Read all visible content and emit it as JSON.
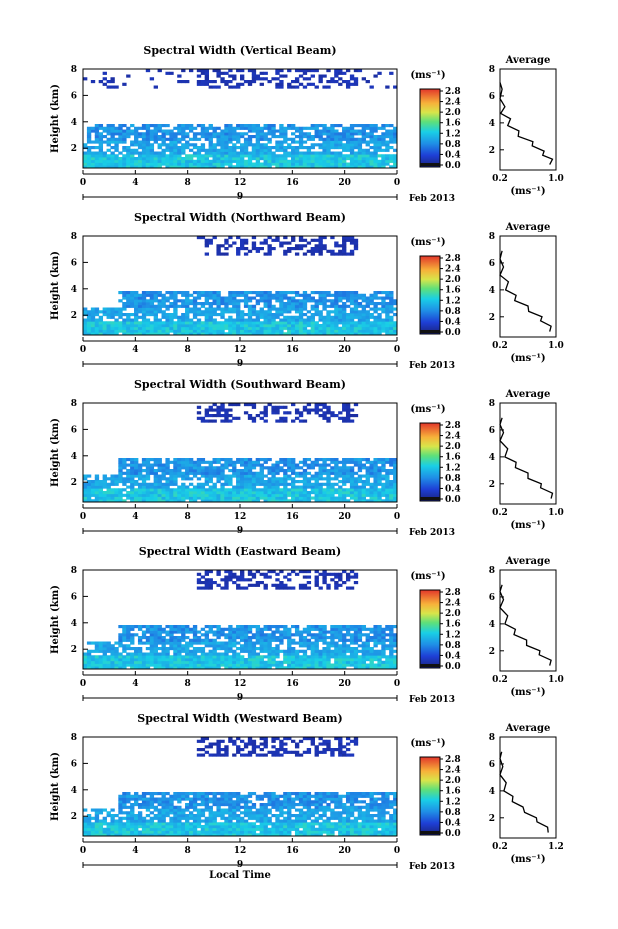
{
  "figure": {
    "xlabel": "Local Time",
    "date_label": "9",
    "month_label": "Feb 2013"
  },
  "chart_data": [
    {
      "type": "heatmap",
      "title": "Spectral Width (Vertical Beam)",
      "ylabel": "Height (km)",
      "x_ticks": [
        "0",
        "4",
        "8",
        "12",
        "16",
        "20",
        "0"
      ],
      "y_ticks": [
        "2",
        "4",
        "6",
        "8"
      ],
      "xlim": [
        0,
        24
      ],
      "ylim": [
        0.5,
        8
      ],
      "colorbar": {
        "label": "(ms⁻¹)",
        "ticks": [
          "0.0",
          "0.4",
          "0.8",
          "1.2",
          "1.6",
          "2.0",
          "2.4",
          "2.8"
        ],
        "range": [
          0,
          2.8
        ]
      },
      "profile": {
        "title": "Average",
        "xlabel": "(ms⁻¹)",
        "x_ticks": [
          "0.2",
          "1.0"
        ],
        "y_ticks": [
          "2",
          "4",
          "6",
          "8"
        ],
        "xlim": [
          0.2,
          1.0
        ],
        "points": [
          [
            0.95,
            0.9
          ],
          [
            0.9,
            1.3
          ],
          [
            0.85,
            1.6
          ],
          [
            0.78,
            1.9
          ],
          [
            0.7,
            2.3
          ],
          [
            0.62,
            2.6
          ],
          [
            0.5,
            3.0
          ],
          [
            0.42,
            3.4
          ],
          [
            0.35,
            3.8
          ],
          [
            0.3,
            4.3
          ],
          [
            0.25,
            4.7
          ],
          [
            0.22,
            5.2
          ],
          [
            0.2,
            5.8
          ],
          [
            0.18,
            6.5
          ],
          [
            0.18,
            7.0
          ]
        ]
      }
    },
    {
      "type": "heatmap",
      "title": "Spectral Width (Northward Beam)",
      "ylabel": "Height (km)",
      "x_ticks": [
        "0",
        "4",
        "8",
        "12",
        "16",
        "20",
        "0"
      ],
      "y_ticks": [
        "2",
        "4",
        "6",
        "8"
      ],
      "xlim": [
        0,
        24
      ],
      "ylim": [
        0.5,
        8
      ],
      "colorbar": {
        "label": "(ms⁻¹)",
        "ticks": [
          "0.0",
          "0.4",
          "0.8",
          "1.2",
          "1.6",
          "2.0",
          "2.4",
          "2.8"
        ],
        "range": [
          0,
          2.8
        ]
      },
      "profile": {
        "title": "Average",
        "xlabel": "(ms⁻¹)",
        "x_ticks": [
          "0.2",
          "1.0"
        ],
        "y_ticks": [
          "2",
          "4",
          "6",
          "8"
        ],
        "xlim": [
          0.2,
          1.0
        ],
        "points": [
          [
            0.95,
            0.9
          ],
          [
            0.88,
            1.3
          ],
          [
            0.82,
            1.7
          ],
          [
            0.75,
            2.0
          ],
          [
            0.65,
            2.4
          ],
          [
            0.55,
            2.8
          ],
          [
            0.45,
            3.2
          ],
          [
            0.38,
            3.6
          ],
          [
            0.32,
            4.0
          ],
          [
            0.27,
            4.6
          ],
          [
            0.23,
            5.1
          ],
          [
            0.2,
            5.7
          ],
          [
            0.19,
            6.3
          ],
          [
            0.18,
            6.9
          ]
        ]
      }
    },
    {
      "type": "heatmap",
      "title": "Spectral Width (Southward Beam)",
      "ylabel": "Height (km)",
      "x_ticks": [
        "0",
        "4",
        "8",
        "12",
        "16",
        "20",
        "0"
      ],
      "y_ticks": [
        "2",
        "4",
        "6",
        "8"
      ],
      "xlim": [
        0,
        24
      ],
      "ylim": [
        0.5,
        8
      ],
      "colorbar": {
        "label": "(ms⁻¹)",
        "ticks": [
          "0.0",
          "0.4",
          "0.8",
          "1.2",
          "1.6",
          "2.0",
          "2.4",
          "2.8"
        ],
        "range": [
          0,
          2.8
        ]
      },
      "profile": {
        "title": "Average",
        "xlabel": "(ms⁻¹)",
        "x_ticks": [
          "0.2",
          "1.0"
        ],
        "y_ticks": [
          "2",
          "4",
          "6",
          "8"
        ],
        "xlim": [
          0.2,
          1.0
        ],
        "points": [
          [
            0.97,
            0.9
          ],
          [
            0.9,
            1.3
          ],
          [
            0.82,
            1.7
          ],
          [
            0.74,
            2.0
          ],
          [
            0.64,
            2.4
          ],
          [
            0.55,
            2.8
          ],
          [
            0.46,
            3.2
          ],
          [
            0.38,
            3.6
          ],
          [
            0.31,
            4.0
          ],
          [
            0.26,
            4.6
          ],
          [
            0.22,
            5.2
          ],
          [
            0.2,
            5.8
          ],
          [
            0.19,
            6.4
          ],
          [
            0.18,
            6.9
          ]
        ]
      }
    },
    {
      "type": "heatmap",
      "title": "Spectral Width (Eastward Beam)",
      "ylabel": "Height (km)",
      "x_ticks": [
        "0",
        "4",
        "8",
        "12",
        "16",
        "20",
        "0"
      ],
      "y_ticks": [
        "2",
        "4",
        "6",
        "8"
      ],
      "xlim": [
        0,
        24
      ],
      "ylim": [
        0.5,
        8
      ],
      "colorbar": {
        "label": "(ms⁻¹)",
        "ticks": [
          "0.0",
          "0.4",
          "0.8",
          "1.2",
          "1.6",
          "2.0",
          "2.4",
          "2.8"
        ],
        "range": [
          0,
          2.8
        ]
      },
      "profile": {
        "title": "Average",
        "xlabel": "(ms⁻¹)",
        "x_ticks": [
          "0.2",
          "1.0"
        ],
        "y_ticks": [
          "2",
          "4",
          "6",
          "8"
        ],
        "xlim": [
          0.2,
          1.0
        ],
        "points": [
          [
            0.95,
            0.9
          ],
          [
            0.88,
            1.3
          ],
          [
            0.8,
            1.7
          ],
          [
            0.72,
            2.0
          ],
          [
            0.62,
            2.4
          ],
          [
            0.53,
            2.8
          ],
          [
            0.44,
            3.2
          ],
          [
            0.37,
            3.6
          ],
          [
            0.31,
            4.0
          ],
          [
            0.26,
            4.6
          ],
          [
            0.22,
            5.2
          ],
          [
            0.2,
            5.8
          ],
          [
            0.19,
            6.4
          ],
          [
            0.18,
            6.9
          ]
        ]
      }
    },
    {
      "type": "heatmap",
      "title": "Spectral Width (Westward Beam)",
      "ylabel": "Height (km)",
      "x_ticks": [
        "0",
        "4",
        "8",
        "12",
        "16",
        "20",
        "0"
      ],
      "y_ticks": [
        "2",
        "4",
        "6",
        "8"
      ],
      "xlim": [
        0,
        24
      ],
      "ylim": [
        0.5,
        8
      ],
      "colorbar": {
        "label": "(ms⁻¹)",
        "ticks": [
          "0.0",
          "0.4",
          "0.8",
          "1.2",
          "1.6",
          "2.0",
          "2.4",
          "2.8"
        ],
        "range": [
          0,
          2.8
        ]
      },
      "profile": {
        "title": "Average",
        "xlabel": "(ms⁻¹)",
        "x_ticks": [
          "0.2",
          "1.2"
        ],
        "y_ticks": [
          "2",
          "4",
          "6",
          "8"
        ],
        "xlim": [
          0.2,
          1.2
        ],
        "points": [
          [
            1.1,
            0.9
          ],
          [
            1.0,
            1.3
          ],
          [
            0.9,
            1.7
          ],
          [
            0.8,
            2.0
          ],
          [
            0.68,
            2.4
          ],
          [
            0.56,
            2.8
          ],
          [
            0.46,
            3.2
          ],
          [
            0.38,
            3.6
          ],
          [
            0.31,
            4.0
          ],
          [
            0.26,
            4.6
          ],
          [
            0.22,
            5.2
          ],
          [
            0.2,
            5.8
          ],
          [
            0.19,
            6.4
          ],
          [
            0.18,
            6.9
          ]
        ]
      }
    }
  ]
}
